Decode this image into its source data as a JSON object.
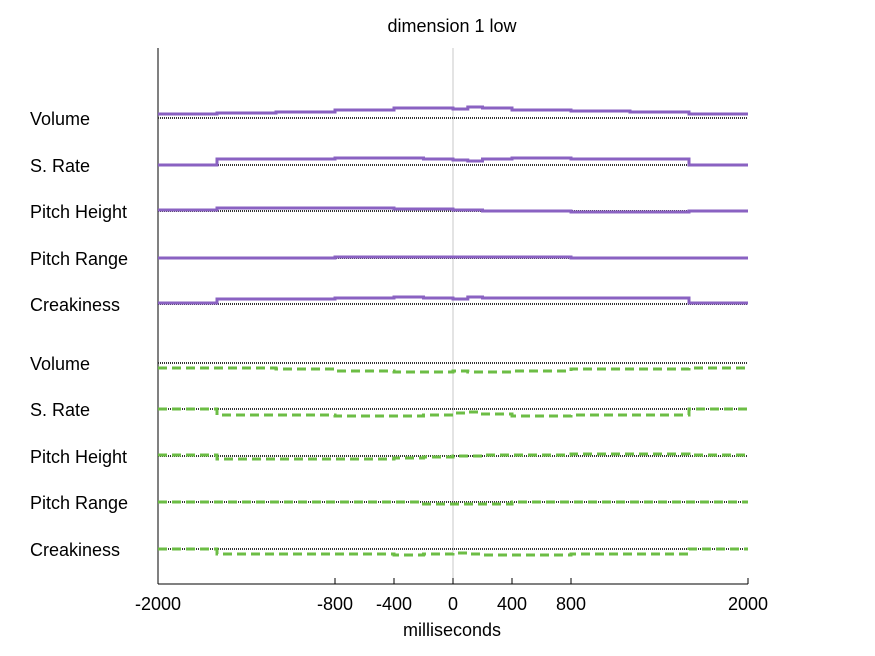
{
  "chart_data": {
    "type": "line",
    "title": "dimension  1 low",
    "xlabel": "milliseconds",
    "ylabel": "",
    "xlim": [
      -2000,
      2000
    ],
    "xticks": [
      -2000,
      -800,
      -400,
      0,
      400,
      800,
      2000
    ],
    "grid": false,
    "legend": "none",
    "colors": {
      "purple": "#8a62c2",
      "green": "#6cbd45",
      "baseline": "#333333",
      "zero_line": "#c8c8c8"
    },
    "x": [
      -2000,
      -1600,
      -1200,
      -800,
      -400,
      -200,
      0,
      100,
      200,
      400,
      800,
      1200,
      1600,
      2000
    ],
    "series": [
      {
        "name": "Volume",
        "group": "purple",
        "values": [
          0.4,
          0.5,
          0.6,
          0.8,
          1.0,
          1.0,
          0.9,
          1.1,
          1.0,
          0.8,
          0.7,
          0.6,
          0.4,
          0.4
        ]
      },
      {
        "name": "S. Rate",
        "group": "purple",
        "values": [
          0.0,
          0.6,
          0.6,
          0.7,
          0.7,
          0.6,
          0.5,
          0.4,
          0.6,
          0.7,
          0.6,
          0.6,
          0.0,
          0.0
        ]
      },
      {
        "name": "Pitch Height",
        "group": "purple",
        "values": [
          0.1,
          0.3,
          0.3,
          0.3,
          0.2,
          0.2,
          0.1,
          0.1,
          0.0,
          0.0,
          -0.1,
          -0.1,
          0.0,
          0.0
        ]
      },
      {
        "name": "Pitch Range",
        "group": "purple",
        "values": [
          0.0,
          0.0,
          0.0,
          0.1,
          0.1,
          0.1,
          0.1,
          0.1,
          0.1,
          0.1,
          0.0,
          0.0,
          0.0,
          0.0
        ]
      },
      {
        "name": "Creakiness",
        "group": "purple",
        "values": [
          0.1,
          0.5,
          0.5,
          0.6,
          0.7,
          0.6,
          0.5,
          0.7,
          0.6,
          0.6,
          0.6,
          0.6,
          0.1,
          0.1
        ]
      },
      {
        "name": "Volume",
        "group": "green",
        "values": [
          -0.5,
          -0.5,
          -0.6,
          -0.8,
          -0.9,
          -0.9,
          -0.8,
          -0.9,
          -0.9,
          -0.8,
          -0.6,
          -0.6,
          -0.5,
          -0.5
        ]
      },
      {
        "name": "S. Rate",
        "group": "green",
        "values": [
          0.0,
          -0.6,
          -0.6,
          -0.7,
          -0.7,
          -0.6,
          -0.4,
          -0.3,
          -0.5,
          -0.7,
          -0.6,
          -0.6,
          0.0,
          0.0
        ]
      },
      {
        "name": "Pitch Height",
        "group": "green",
        "values": [
          0.1,
          -0.3,
          -0.3,
          -0.3,
          -0.2,
          -0.1,
          0.0,
          0.0,
          0.1,
          0.1,
          0.2,
          0.2,
          0.1,
          0.1
        ]
      },
      {
        "name": "Pitch Range",
        "group": "green",
        "values": [
          0.0,
          0.0,
          0.0,
          0.0,
          0.0,
          -0.2,
          -0.2,
          -0.2,
          -0.2,
          0.0,
          0.0,
          0.0,
          0.0,
          0.0
        ]
      },
      {
        "name": "Creakiness",
        "group": "green",
        "values": [
          0.0,
          -0.5,
          -0.5,
          -0.5,
          -0.6,
          -0.5,
          -0.4,
          -0.5,
          -0.6,
          -0.6,
          -0.5,
          -0.5,
          0.0,
          0.0
        ]
      }
    ]
  }
}
